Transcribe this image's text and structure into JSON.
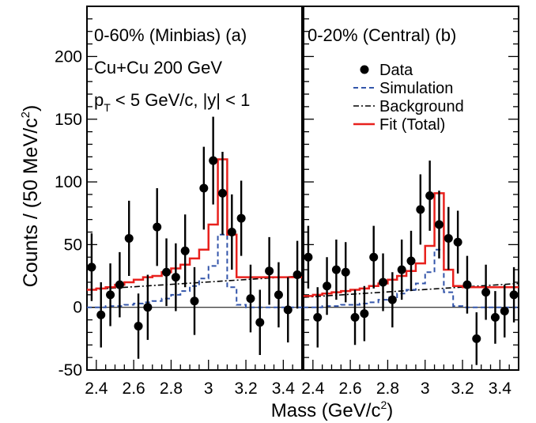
{
  "ylabel_main": "Counts / (50 MeV/c",
  "ylabel_sup": "2",
  "ylabel_close": ")",
  "xlabel_main": "Mass (GeV/c",
  "xlabel_sup": "2",
  "xlabel_close": ")",
  "info_line1": "Cu+Cu 200 GeV",
  "info_line2_p": "p",
  "info_line2_sub": "T",
  "info_line2_rest": " < 5 GeV/c, |y| < 1",
  "colors": {
    "data": "#000000",
    "simulation": "#3355aa",
    "background": "#000000",
    "fit": "#e8211d"
  },
  "chart_data": [
    {
      "type": "line",
      "panel": "a",
      "title": "0-60% (Minbias) (a)",
      "xlim": [
        2.35,
        3.5
      ],
      "ylim": [
        -50,
        240
      ],
      "xticks": [
        2.4,
        2.6,
        2.8,
        3.0,
        3.2,
        3.4
      ],
      "xtick_labels": [
        "2.4",
        "2.6",
        "2.8",
        "3",
        "3.2",
        "3.4"
      ],
      "yticks": [
        -50,
        0,
        50,
        100,
        150,
        200
      ],
      "ytick_labels": [
        "-50",
        "0",
        "50",
        "100",
        "150",
        "200"
      ],
      "bin_width": 0.05,
      "data": {
        "name": "Data",
        "x": [
          2.375,
          2.425,
          2.475,
          2.525,
          2.575,
          2.625,
          2.675,
          2.725,
          2.775,
          2.825,
          2.875,
          2.925,
          2.975,
          3.025,
          3.075,
          3.125,
          3.175,
          3.225,
          3.275,
          3.325,
          3.375,
          3.425,
          3.475
        ],
        "y": [
          32,
          -6,
          10,
          18,
          55,
          -15,
          0,
          64,
          28,
          24,
          45,
          5,
          95,
          117,
          91,
          60,
          71,
          7,
          -12,
          29,
          10,
          -2,
          26
        ],
        "err": [
          27,
          26,
          25,
          26,
          30,
          26,
          26,
          31,
          27,
          27,
          29,
          27,
          33,
          35,
          33,
          30,
          30,
          27,
          26,
          27,
          26,
          26,
          27
        ]
      },
      "simulation": {
        "name": "Simulation",
        "bin_edges": [
          2.35,
          2.4,
          2.45,
          2.5,
          2.55,
          2.6,
          2.65,
          2.7,
          2.75,
          2.8,
          2.85,
          2.9,
          2.95,
          3.0,
          3.05,
          3.1,
          3.15,
          3.2,
          3.5
        ],
        "values": [
          0,
          0,
          1,
          1,
          2,
          3,
          4,
          5,
          7,
          10,
          13,
          17,
          23,
          33,
          58,
          16,
          2,
          0
        ]
      },
      "background": {
        "name": "Background",
        "x": [
          2.35,
          3.5
        ],
        "y": [
          14,
          25
        ]
      },
      "fit": {
        "name": "Fit (Total)",
        "bin_edges": [
          2.35,
          2.4,
          2.45,
          2.5,
          2.55,
          2.6,
          2.65,
          2.7,
          2.75,
          2.8,
          2.85,
          2.9,
          2.95,
          3.0,
          3.05,
          3.1,
          3.15,
          3.2,
          3.25,
          3.3,
          3.35,
          3.4,
          3.45,
          3.5
        ],
        "values": [
          14,
          15,
          16,
          18,
          20,
          22,
          24,
          25,
          28,
          31,
          34,
          39,
          46,
          66,
          118,
          58,
          24,
          24,
          24,
          24,
          24,
          24,
          24
        ]
      }
    },
    {
      "type": "line",
      "panel": "b",
      "title": "0-20% (Central)  (b)",
      "xlim": [
        2.35,
        3.5
      ],
      "ylim": [
        -50,
        240
      ],
      "xticks": [
        2.4,
        2.6,
        2.8,
        3.0,
        3.2,
        3.4
      ],
      "xtick_labels": [
        "2.4",
        "2.6",
        "2.8",
        "3",
        "3.2",
        "3.4"
      ],
      "bin_width": 0.05,
      "data": {
        "name": "Data",
        "x": [
          2.375,
          2.425,
          2.475,
          2.525,
          2.575,
          2.625,
          2.675,
          2.725,
          2.775,
          2.825,
          2.875,
          2.925,
          2.975,
          3.025,
          3.075,
          3.125,
          3.175,
          3.225,
          3.275,
          3.325,
          3.375,
          3.425,
          3.475
        ],
        "y": [
          40,
          -8,
          17,
          30,
          28,
          -8,
          -5,
          40,
          20,
          6,
          30,
          37,
          78,
          89,
          66,
          55,
          52,
          18,
          -25,
          12,
          -8,
          -3,
          10
        ],
        "err": [
          25,
          24,
          23,
          24,
          24,
          22,
          22,
          25,
          23,
          22,
          24,
          24,
          28,
          28,
          27,
          25,
          25,
          23,
          21,
          22,
          21,
          21,
          22
        ]
      },
      "simulation": {
        "name": "Simulation",
        "bin_edges": [
          2.35,
          2.4,
          2.45,
          2.5,
          2.55,
          2.6,
          2.65,
          2.7,
          2.75,
          2.8,
          2.85,
          2.9,
          2.95,
          3.0,
          3.05,
          3.1,
          3.15,
          3.2,
          3.5
        ],
        "values": [
          0,
          0,
          1,
          1,
          2,
          2,
          3,
          4,
          6,
          8,
          11,
          14,
          19,
          28,
          46,
          12,
          1,
          0
        ]
      },
      "background": {
        "name": "Background",
        "x": [
          2.35,
          3.5
        ],
        "y": [
          8,
          19
        ]
      },
      "fit": {
        "name": "Fit (Total)",
        "bin_edges": [
          2.35,
          2.4,
          2.45,
          2.5,
          2.55,
          2.6,
          2.65,
          2.7,
          2.75,
          2.8,
          2.85,
          2.9,
          2.95,
          3.0,
          3.05,
          3.1,
          3.15,
          3.2,
          3.25,
          3.3,
          3.35,
          3.4,
          3.45,
          3.5
        ],
        "values": [
          9,
          10,
          11,
          12,
          13,
          14,
          15,
          17,
          19,
          22,
          25,
          29,
          35,
          49,
          91,
          30,
          17,
          16,
          16,
          16,
          16,
          16,
          16
        ]
      },
      "legend": {
        "placement": "top-right",
        "entries": [
          "Data",
          "Simulation",
          "Background",
          "Fit (Total)"
        ]
      }
    }
  ]
}
